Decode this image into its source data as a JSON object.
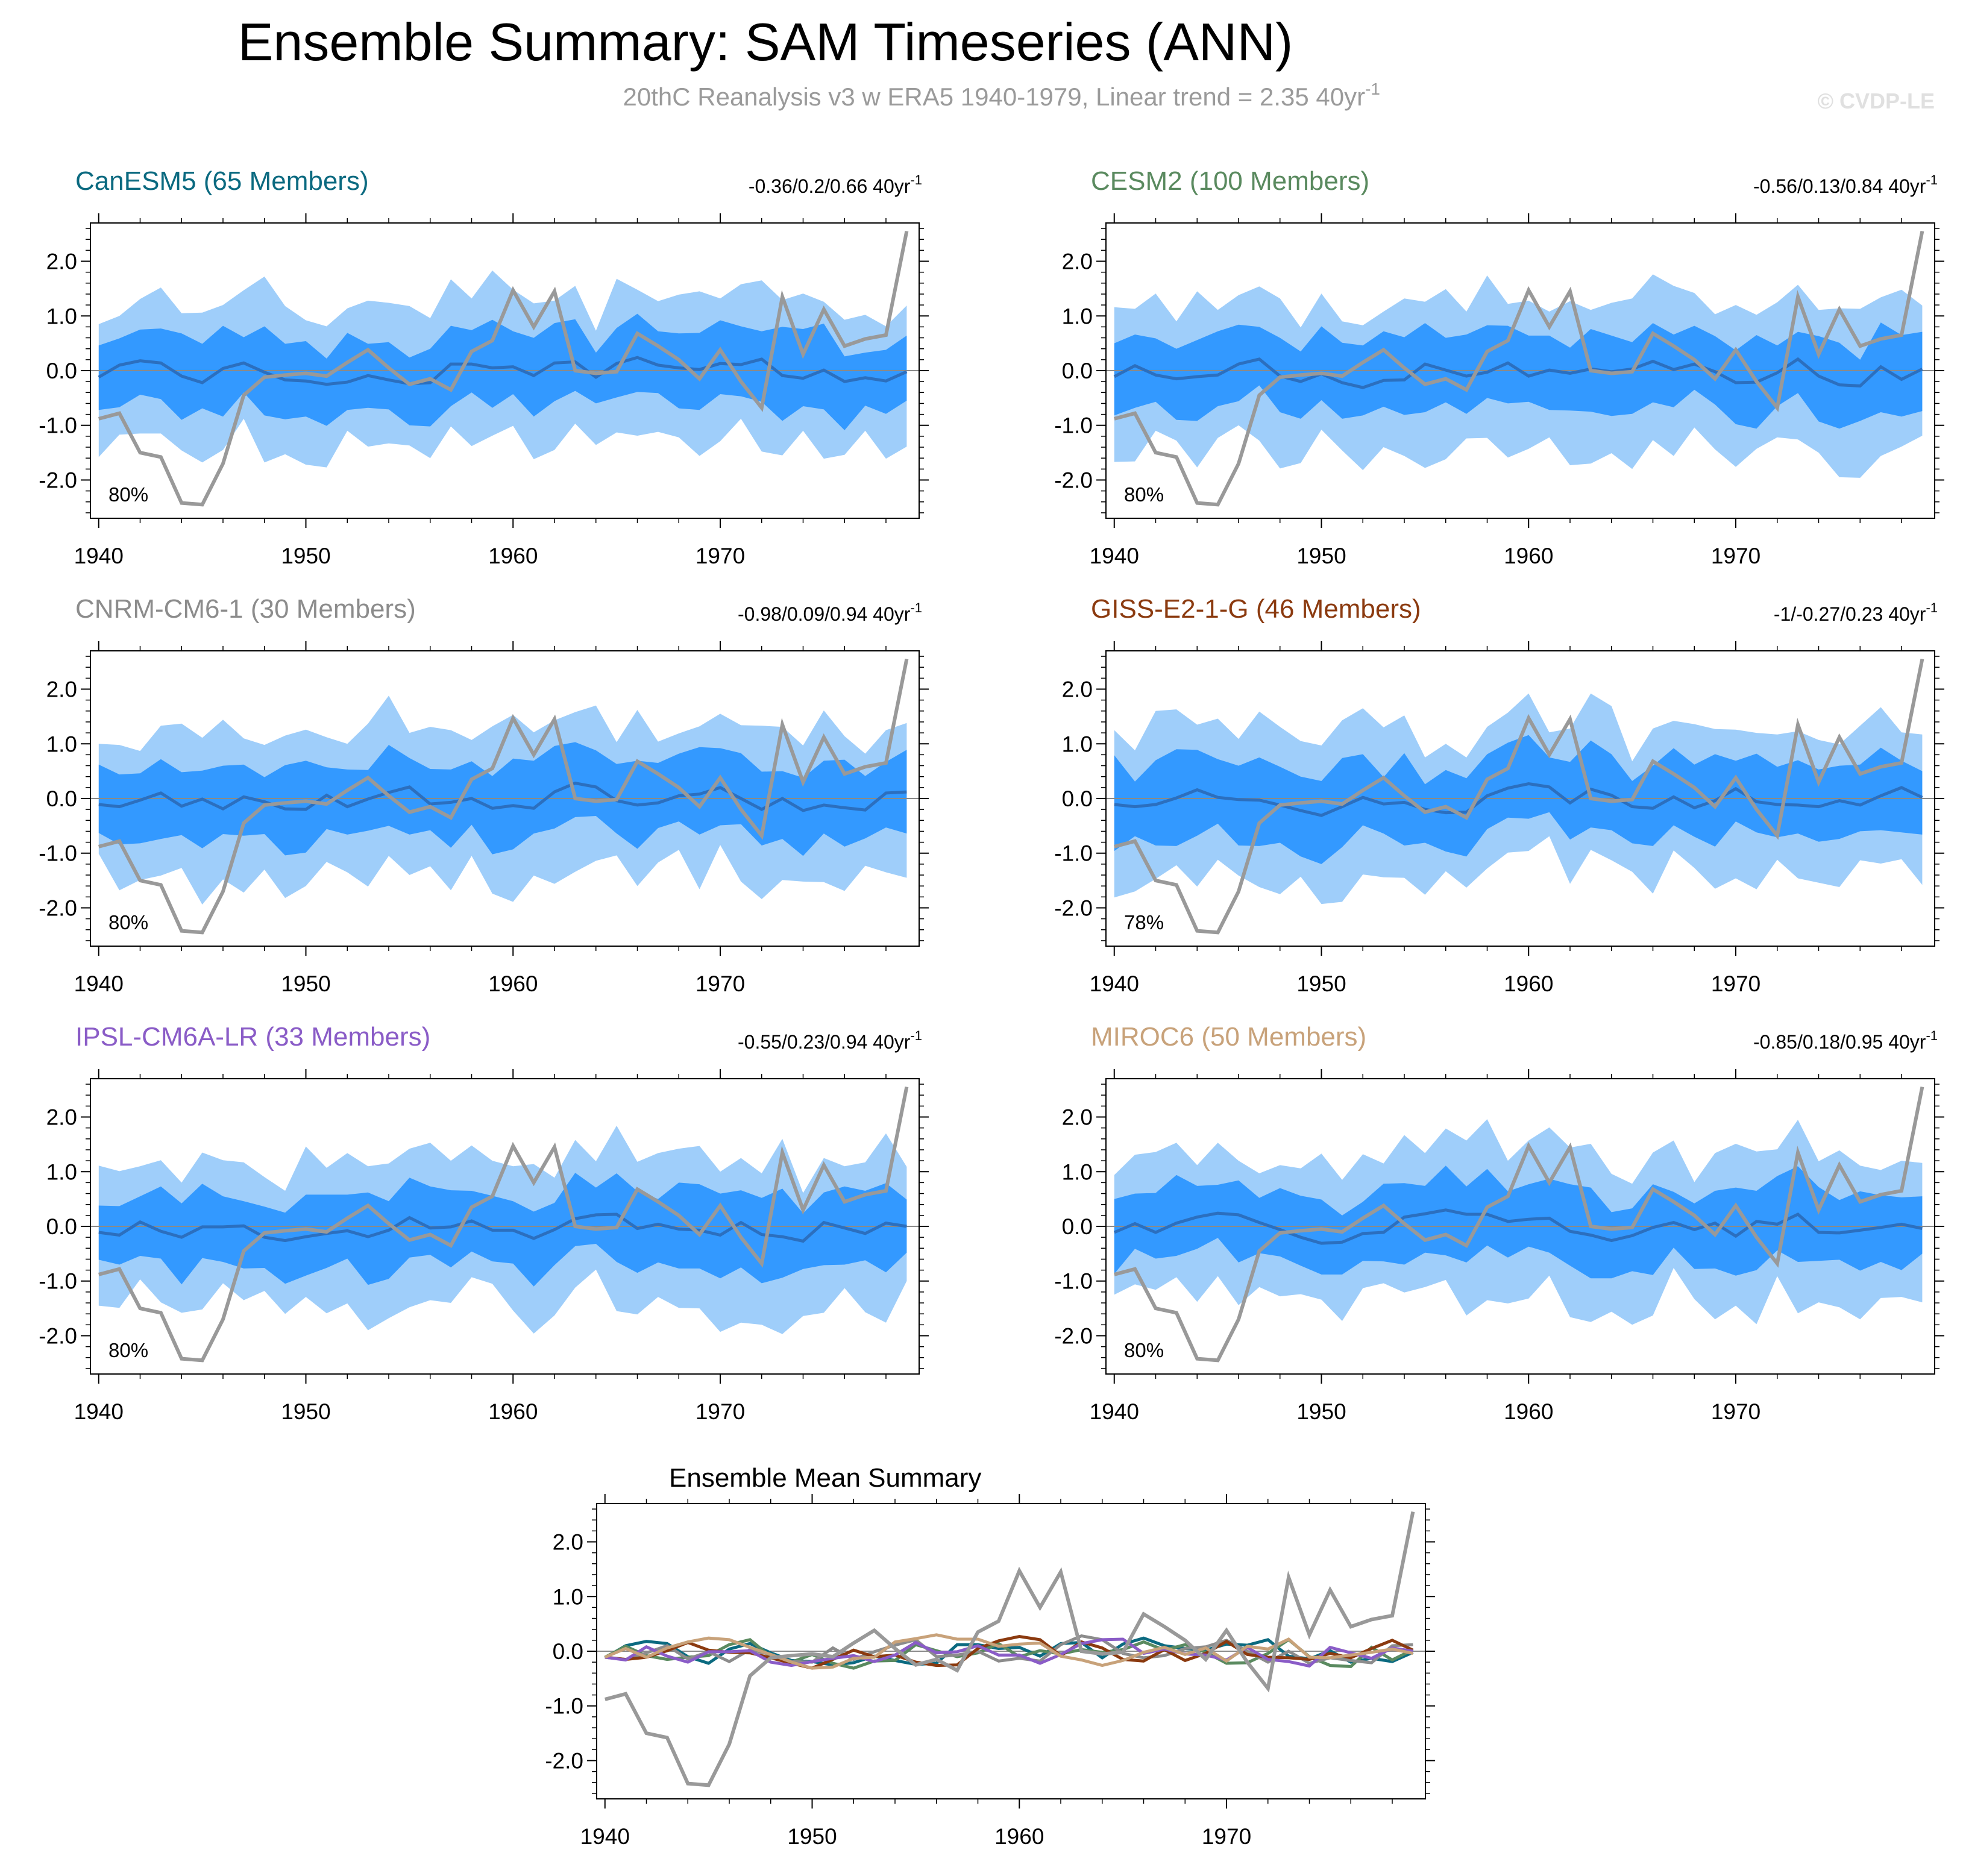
{
  "figure": {
    "title": "Ensemble Summary: SAM Timeseries (ANN)",
    "subtitle": "20thC Reanalysis v3 w ERA5 1940-1979, Linear trend = 2.35 40yr",
    "subtitle_sup": "-1",
    "copyright": "© CVDP-LE",
    "colors": {
      "outer_band": "#9fcefa",
      "inner_band": "#3399ff",
      "mean_line": "#2b6fbf",
      "obs_line": "#999999",
      "zero_line": "#8a8a8a"
    }
  },
  "chart_data": [
    {
      "type": "line",
      "title": "CanESM5 (65 Members)",
      "title_color": "#0b6a80",
      "trend_text": "-0.36/0.2/0.66 40yr",
      "trend_sup": "-1",
      "percent_label": "80%",
      "x_ticks": [
        1940,
        1950,
        1960,
        1970
      ],
      "y_ticks": [
        2.0,
        1.0,
        0.0,
        -1.0,
        -2.0
      ],
      "y_tick_labels": [
        "2.0",
        "1.0",
        "0.0",
        "-1.0",
        "-2.0"
      ],
      "xlim": [
        1939.6,
        1979.6
      ],
      "ylim": [
        -2.7,
        2.7
      ],
      "seed": 11,
      "mean_base": 0.0
    },
    {
      "type": "line",
      "title": "CESM2 (100 Members)",
      "title_color": "#5a8a5f",
      "trend_text": "-0.56/0.13/0.84 40yr",
      "trend_sup": "-1",
      "percent_label": "80%",
      "x_ticks": [
        1940,
        1950,
        1960,
        1970
      ],
      "y_ticks": [
        2.0,
        1.0,
        0.0,
        -1.0,
        -2.0
      ],
      "y_tick_labels": [
        "2.0",
        "1.0",
        "0.0",
        "-1.0",
        "-2.0"
      ],
      "xlim": [
        1939.6,
        1979.6
      ],
      "ylim": [
        -2.7,
        2.7
      ],
      "seed": 23,
      "mean_base": 0.0
    },
    {
      "type": "line",
      "title": "CNRM-CM6-1 (30 Members)",
      "title_color": "#8c8c8c",
      "trend_text": "-0.98/0.09/0.94 40yr",
      "trend_sup": "-1",
      "percent_label": "80%",
      "x_ticks": [
        1940,
        1950,
        1960,
        1970
      ],
      "y_ticks": [
        2.0,
        1.0,
        0.0,
        -1.0,
        -2.0
      ],
      "y_tick_labels": [
        "2.0",
        "1.0",
        "0.0",
        "-1.0",
        "-2.0"
      ],
      "xlim": [
        1939.6,
        1979.6
      ],
      "ylim": [
        -2.7,
        2.7
      ],
      "seed": 37,
      "mean_base": 0.0
    },
    {
      "type": "line",
      "title": "GISS-E2-1-G (46 Members)",
      "title_color": "#8b3a0f",
      "trend_text": "-1/-0.27/0.23 40yr",
      "trend_sup": "-1",
      "percent_label": "78%",
      "x_ticks": [
        1940,
        1950,
        1960,
        1970
      ],
      "y_ticks": [
        2.0,
        1.0,
        0.0,
        -1.0,
        -2.0
      ],
      "y_tick_labels": [
        "2.0",
        "1.0",
        "0.0",
        "-1.0",
        "-2.0"
      ],
      "xlim": [
        1939.6,
        1979.6
      ],
      "ylim": [
        -2.7,
        2.7
      ],
      "seed": 41,
      "mean_base": 0.0
    },
    {
      "type": "line",
      "title": "IPSL-CM6A-LR (33 Members)",
      "title_color": "#8a5cc7",
      "trend_text": "-0.55/0.23/0.94 40yr",
      "trend_sup": "-1",
      "percent_label": "80%",
      "x_ticks": [
        1940,
        1950,
        1960,
        1970
      ],
      "y_ticks": [
        2.0,
        1.0,
        0.0,
        -1.0,
        -2.0
      ],
      "y_tick_labels": [
        "2.0",
        "1.0",
        "0.0",
        "-1.0",
        "-2.0"
      ],
      "xlim": [
        1939.6,
        1979.6
      ],
      "ylim": [
        -2.7,
        2.7
      ],
      "seed": 53,
      "mean_base": 0.0
    },
    {
      "type": "line",
      "title": "MIROC6 (50 Members)",
      "title_color": "#c8a27a",
      "trend_text": "-0.85/0.18/0.95 40yr",
      "trend_sup": "-1",
      "percent_label": "80%",
      "x_ticks": [
        1940,
        1950,
        1960,
        1970
      ],
      "y_ticks": [
        2.0,
        1.0,
        0.0,
        -1.0,
        -2.0
      ],
      "y_tick_labels": [
        "2.0",
        "1.0",
        "0.0",
        "-1.0",
        "-2.0"
      ],
      "xlim": [
        1939.6,
        1979.6
      ],
      "ylim": [
        -2.7,
        2.7
      ],
      "seed": 67,
      "mean_base": 0.0
    },
    {
      "type": "line",
      "title": "Ensemble Mean Summary",
      "x_ticks": [
        1940,
        1950,
        1960,
        1970
      ],
      "y_ticks": [
        2.0,
        1.0,
        0.0,
        -1.0,
        -2.0
      ],
      "y_tick_labels": [
        "2.0",
        "1.0",
        "0.0",
        "-1.0",
        "-2.0"
      ],
      "xlim": [
        1939.6,
        1979.6
      ],
      "ylim": [
        -2.7,
        2.7
      ]
    }
  ],
  "observations": {
    "name": "20thC Reanalysis v3 w ERA5",
    "x": [
      1940,
      1941,
      1942,
      1943,
      1944,
      1945,
      1946,
      1947,
      1948,
      1949,
      1950,
      1951,
      1952,
      1953,
      1954,
      1955,
      1956,
      1957,
      1958,
      1959,
      1960,
      1961,
      1962,
      1963,
      1964,
      1965,
      1966,
      1967,
      1968,
      1969,
      1970,
      1971,
      1972,
      1973,
      1974,
      1975,
      1976,
      1977,
      1978,
      1979
    ],
    "values": [
      -0.88,
      -0.78,
      -1.5,
      -1.58,
      -2.42,
      -2.45,
      -1.7,
      -0.45,
      -0.12,
      -0.08,
      -0.05,
      -0.1,
      0.15,
      0.38,
      0.05,
      -0.25,
      -0.15,
      -0.35,
      0.35,
      0.55,
      1.47,
      0.8,
      1.45,
      0.0,
      -0.05,
      -0.02,
      0.68,
      0.45,
      0.2,
      -0.15,
      0.38,
      -0.2,
      -0.68,
      1.35,
      0.3,
      1.12,
      0.45,
      0.58,
      0.65,
      2.55
    ]
  }
}
